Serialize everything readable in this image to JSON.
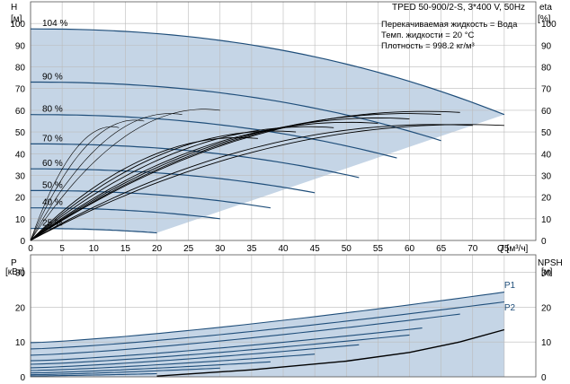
{
  "info": {
    "title": "TPED 50-900/2-S, 3*400 V, 50Hz",
    "lines": [
      "Перекачиваемая жидкость = Вода",
      "Темп. жидкости = 20 °C",
      "Плотность = 998.2 кг/м³"
    ]
  },
  "colors": {
    "envelope_fill": "#c5d5e6",
    "curve": "#1f4e7a",
    "grid": "#bbbbbb",
    "eta": "#000000"
  },
  "chart_data": [
    {
      "type": "line",
      "name": "head-eta",
      "xlabel": "Q [м³/ч]",
      "ylabel_left": "H [м]",
      "ylabel_right": "eta [%]",
      "xlim": [
        0,
        80
      ],
      "ylim": [
        0,
        110
      ],
      "x_ticks": [
        0,
        5,
        10,
        15,
        20,
        25,
        30,
        35,
        40,
        45,
        50,
        55,
        60,
        65,
        70,
        75
      ],
      "y_ticks": [
        0,
        10,
        20,
        30,
        40,
        50,
        60,
        70,
        80,
        90,
        100
      ],
      "grid": true,
      "speed_curves": [
        {
          "label": "104 %",
          "q_max": 75,
          "h0": 97.5,
          "h_end": 58
        },
        {
          "label": "90 %",
          "q_max": 65,
          "h0": 73,
          "h_end": 46
        },
        {
          "label": "80 %",
          "q_max": 58,
          "h0": 58,
          "h_end": 38
        },
        {
          "label": "70 %",
          "q_max": 52,
          "h0": 44.5,
          "h_end": 29
        },
        {
          "label": "60 %",
          "q_max": 45,
          "h0": 33,
          "h_end": 22
        },
        {
          "label": "50 %",
          "q_max": 38,
          "h0": 23,
          "h_end": 15
        },
        {
          "label": "40 %",
          "q_max": 30,
          "h0": 15,
          "h_end": 10
        },
        {
          "label": "25 %",
          "q_max": 20,
          "h0": 5.5,
          "h_end": 3.5
        }
      ],
      "eta_curves": [
        {
          "q_max": 75,
          "peak": 53
        },
        {
          "q_max": 70,
          "peak": 53
        },
        {
          "q_max": 68,
          "peak": 59
        },
        {
          "q_max": 65,
          "peak": 58
        },
        {
          "q_max": 60,
          "peak": 56
        },
        {
          "q_max": 55,
          "peak": 54
        },
        {
          "q_max": 48,
          "peak": 52
        },
        {
          "q_max": 42,
          "peak": 50
        },
        {
          "q_max": 36,
          "peak": 47
        },
        {
          "q_max": 30,
          "peak": 60
        },
        {
          "q_max": 24,
          "peak": 58
        },
        {
          "q_max": 18,
          "peak": 55
        },
        {
          "q_max": 14,
          "peak": 52
        }
      ]
    },
    {
      "type": "line",
      "name": "power-npsh",
      "xlabel": "",
      "ylabel_left": "P [кВт]",
      "ylabel_right": "NPSH [м]",
      "xlim": [
        0,
        80
      ],
      "ylim": [
        0,
        35
      ],
      "y_ticks": [
        0,
        10,
        20,
        30
      ],
      "grid": true,
      "series_labels": [
        "P1",
        "P2"
      ],
      "power_curves": [
        {
          "q_max": 75,
          "p0": 9.8,
          "p_end": 24.3
        },
        {
          "q_max": 75,
          "p0": 8.0,
          "p_end": 21.5
        },
        {
          "q_max": 68,
          "p0": 6.2,
          "p_end": 18.0
        },
        {
          "q_max": 62,
          "p0": 4.6,
          "p_end": 14.0
        },
        {
          "q_max": 60,
          "p0": 3.6,
          "p_end": 12.0
        },
        {
          "q_max": 52,
          "p0": 2.6,
          "p_end": 9.2
        },
        {
          "q_max": 45,
          "p0": 1.8,
          "p_end": 6.5
        },
        {
          "q_max": 38,
          "p0": 1.1,
          "p_end": 4.3
        },
        {
          "q_max": 30,
          "p0": 0.6,
          "p_end": 2.5
        },
        {
          "q_max": 20,
          "p0": 0.25,
          "p_end": 0.9
        }
      ],
      "npsh": [
        {
          "q": 20,
          "v": 0.2
        },
        {
          "q": 35,
          "v": 2.0
        },
        {
          "q": 50,
          "v": 4.5
        },
        {
          "q": 60,
          "v": 7.0
        },
        {
          "q": 68,
          "v": 10.0
        },
        {
          "q": 75,
          "v": 13.5
        }
      ]
    }
  ]
}
